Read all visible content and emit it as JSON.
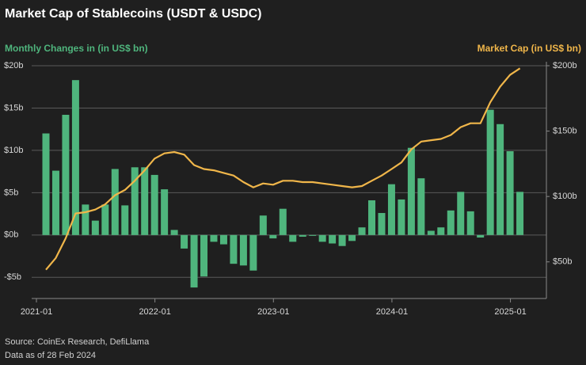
{
  "chart_data": {
    "type": "bar_line",
    "title": "Market Cap of Stablecoins (USDT & USDC)",
    "categories": [
      "2021-01",
      null,
      null,
      null,
      null,
      null,
      null,
      null,
      null,
      null,
      null,
      null,
      "2022-01",
      null,
      null,
      null,
      null,
      null,
      null,
      null,
      null,
      null,
      null,
      null,
      "2023-01",
      null,
      null,
      null,
      null,
      null,
      null,
      null,
      null,
      null,
      null,
      null,
      "2024-01",
      null,
      null,
      null,
      null,
      null,
      null,
      null,
      null,
      null,
      null,
      null,
      "2025-01"
    ],
    "series": [
      {
        "name": "Monthly Changes in (in US$ bn)",
        "type": "bar",
        "color": "#4fb57d",
        "values": [
          12,
          7.6,
          14.2,
          18.3,
          3.6,
          1.7,
          3.6,
          7.8,
          3.5,
          8,
          8,
          7.1,
          5.4,
          0.6,
          -1.6,
          -6.2,
          -4.9,
          -0.8,
          -1.1,
          -3.4,
          -3.6,
          -4.2,
          2.3,
          -0.4,
          3.1,
          -0.8,
          -0.2,
          -0.1,
          -0.8,
          -1,
          -1.3,
          -0.7,
          0.9,
          4.1,
          2.6,
          6,
          4.2,
          10.3,
          6.7,
          0.5,
          0.9,
          2.9,
          5.1,
          2.8,
          -0.3,
          14.8,
          13.1,
          9.9,
          5.1
        ]
      },
      {
        "name": "Market Cap (in US$ bn)",
        "type": "line",
        "axis": "y2",
        "color": "#f0b64a",
        "values": [
          44,
          53,
          68,
          87,
          88,
          90,
          94,
          101,
          105,
          112,
          120,
          129,
          133,
          134,
          132,
          124,
          121,
          120,
          118,
          116,
          111,
          107,
          110,
          109,
          112,
          112,
          111,
          111,
          110,
          109,
          108,
          107,
          108,
          112,
          116,
          121,
          126,
          136,
          142,
          143,
          144,
          147,
          153,
          156,
          156,
          172,
          184,
          193,
          198
        ]
      }
    ],
    "ylim": [
      -7.5,
      20
    ],
    "yticks": [
      {
        "value": -5,
        "label": "-$5b"
      },
      {
        "value": 0,
        "label": "$0b"
      },
      {
        "value": 5,
        "label": "$5b"
      },
      {
        "value": 10,
        "label": "$10b"
      },
      {
        "value": 15,
        "label": "$15b"
      },
      {
        "value": 20,
        "label": "$20b"
      }
    ],
    "y2lim": [
      22,
      200
    ],
    "y2ticks": [
      {
        "value": 50,
        "label": "$50b"
      },
      {
        "value": 100,
        "label": "$100b"
      },
      {
        "value": 150,
        "label": "$150b"
      },
      {
        "value": 200,
        "label": "$200b"
      }
    ],
    "grid": true,
    "notes": [
      "Source: CoinEx Research, DefiLlama",
      "Data as of 28 Feb 2024"
    ]
  }
}
